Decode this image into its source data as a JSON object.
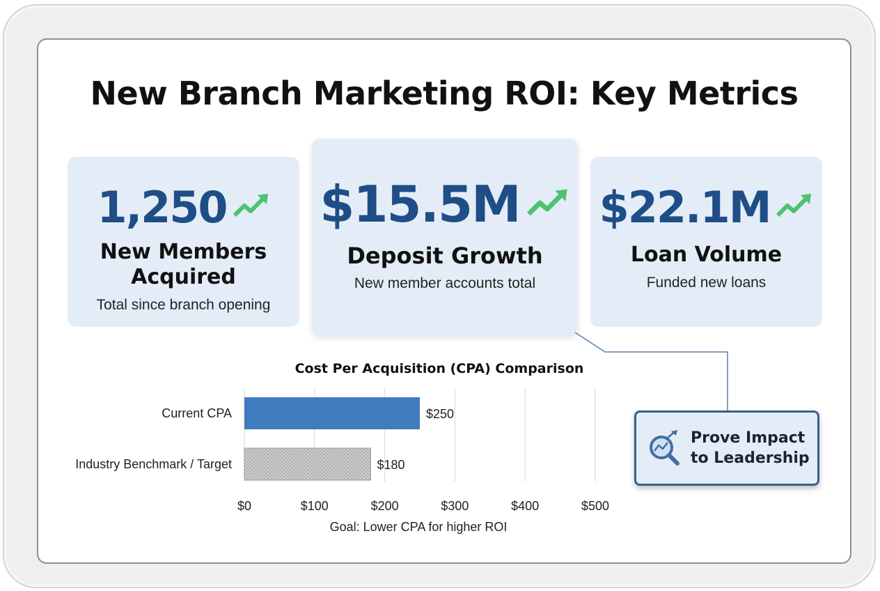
{
  "page": {
    "title": "New Branch Marketing ROI: Key Metrics"
  },
  "metrics": [
    {
      "value": "1,250",
      "label": "New Members Acquired",
      "sub": "Total since branch opening",
      "trend_icon": "trend-up-icon"
    },
    {
      "value": "$15.5M",
      "label": "Deposit Growth",
      "sub": "New member accounts total",
      "trend_icon": "trend-up-icon"
    },
    {
      "value": "$22.1M",
      "label": "Loan Volume",
      "sub": "Funded new loans",
      "trend_icon": "trend-up-icon"
    }
  ],
  "callout": {
    "line1": "Prove Impact",
    "line2": "to Leadership",
    "icon": "magnifier-chart-icon"
  },
  "colors": {
    "accent": "#1f4e87",
    "trend_green": "#4cc36f",
    "card_bg": "#e4edf7",
    "bar_current": "#3f7bbd",
    "bar_benchmark": "#c4c4c4",
    "callout_border": "#3a5f86"
  },
  "chart_data": {
    "type": "bar",
    "orientation": "horizontal",
    "title": "Cost Per Acquisition (CPA) Comparison",
    "categories": [
      "Current CPA",
      "Industry Benchmark / Target"
    ],
    "values": [
      250,
      180
    ],
    "value_labels": [
      "$250",
      "$180"
    ],
    "xlim": [
      0,
      500
    ],
    "xticks": [
      0,
      100,
      200,
      300,
      400,
      500
    ],
    "xtick_labels": [
      "$0",
      "$100",
      "$200",
      "$300",
      "$400",
      "$500"
    ],
    "xlabel": "Goal: Lower CPA for higher ROI",
    "ylabel": "",
    "grid": "vertical",
    "legend": "none"
  }
}
